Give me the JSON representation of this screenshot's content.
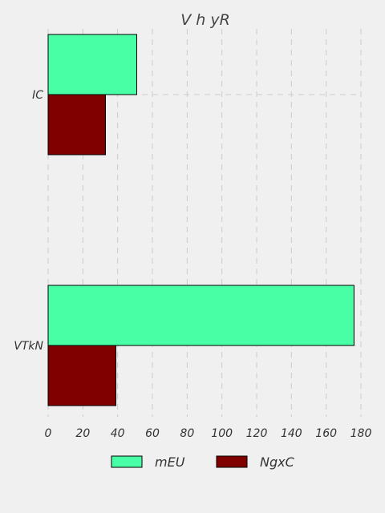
{
  "chart_data": {
    "type": "bar",
    "orientation": "horizontal",
    "title": "V  h yR",
    "xlabel": "",
    "ylabel": "",
    "categories": [
      "IC",
      "VTkN"
    ],
    "series": [
      {
        "name": "mEU",
        "values": [
          51,
          176
        ],
        "color": "#48ffa6"
      },
      {
        "name": "NgxC",
        "values": [
          33,
          39
        ],
        "color": "#800000"
      }
    ],
    "xlim": [
      0,
      180
    ],
    "xticks": [
      "0",
      "20",
      "40",
      "60",
      "80",
      "100",
      "120",
      "140",
      "160",
      "180"
    ],
    "grid": true,
    "legend_position": "bottom"
  }
}
